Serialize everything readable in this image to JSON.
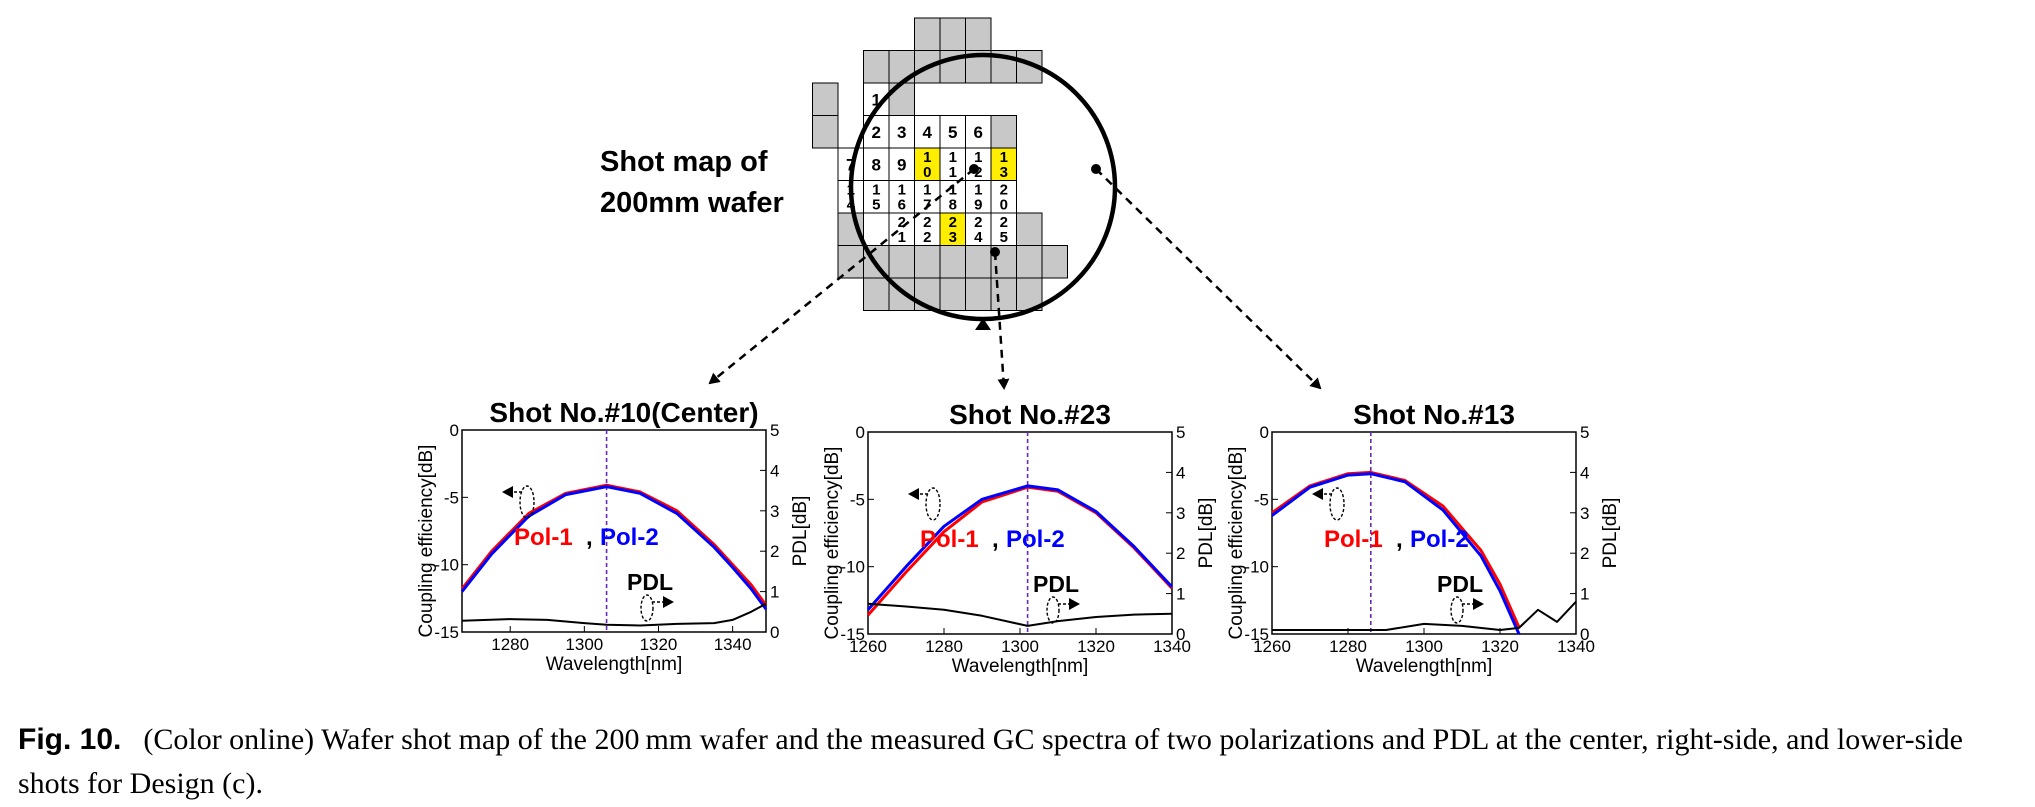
{
  "shot_map": {
    "title_line1": "Shot map of",
    "title_line2": "200mm wafer",
    "rows": [
      {
        "gray_before": 1,
        "cells": [
          "1"
        ],
        "gray_after": 1
      },
      {
        "gray_before": 1,
        "cells": [
          "2",
          "3",
          "4",
          "5",
          "6"
        ],
        "gray_after": 1
      },
      {
        "gray_before": 0,
        "cells": [
          "7",
          "8",
          "9",
          "10",
          "11",
          "12",
          "13"
        ],
        "gray_after": 0
      },
      {
        "gray_before": 0,
        "cells": [
          "14",
          "15",
          "16",
          "17",
          "18",
          "19",
          "20"
        ],
        "gray_after": 0
      },
      {
        "gray_before": 1,
        "cells": [
          "21",
          "22",
          "23",
          "24",
          "25"
        ],
        "gray_after": 1
      }
    ],
    "highlighted": [
      "10",
      "13",
      "23"
    ],
    "highlight_color": "#ffee00",
    "cell_gray": "#c8c8c8"
  },
  "chart_data": [
    {
      "type": "line",
      "title": "Shot No.#10(Center)",
      "xlabel": "Wavelength[nm]",
      "ylabel_left": "Coupling efficiency[dB]",
      "ylabel_right": "PDL[dB]",
      "xlim": [
        1267,
        1349
      ],
      "xticks": [
        1280,
        1300,
        1320,
        1340
      ],
      "ylim_left": [
        -15,
        0
      ],
      "yticks_left": [
        0,
        -5,
        -10,
        -15
      ],
      "ylim_right": [
        0,
        5
      ],
      "yticks_right": [
        5,
        4,
        3,
        2,
        1,
        0
      ],
      "center_wavelength": 1306,
      "series": [
        {
          "name": "Pol-1",
          "color": "#ff0000",
          "axis": "left",
          "x": [
            1267,
            1275,
            1285,
            1295,
            1306,
            1315,
            1325,
            1335,
            1340,
            1345,
            1349
          ],
          "y": [
            -11.8,
            -9.0,
            -6.2,
            -4.7,
            -4.1,
            -4.6,
            -6.0,
            -8.5,
            -10.0,
            -11.5,
            -13.0
          ]
        },
        {
          "name": "Pol-2",
          "color": "#0000ff",
          "axis": "left",
          "x": [
            1267,
            1275,
            1285,
            1295,
            1306,
            1315,
            1325,
            1335,
            1340,
            1345,
            1349
          ],
          "y": [
            -12.0,
            -9.2,
            -6.4,
            -4.8,
            -4.2,
            -4.7,
            -6.2,
            -8.7,
            -10.2,
            -11.8,
            -13.3
          ]
        },
        {
          "name": "PDL",
          "color": "#000000",
          "axis": "right",
          "x": [
            1267,
            1280,
            1290,
            1300,
            1306,
            1315,
            1325,
            1335,
            1340,
            1345,
            1349
          ],
          "y": [
            0.28,
            0.32,
            0.3,
            0.22,
            0.18,
            0.16,
            0.2,
            0.22,
            0.3,
            0.5,
            0.7
          ]
        }
      ],
      "annotations": {
        "pol1": "Pol-1",
        "comma": ",",
        "pol2": "Pol-2",
        "pdl": "PDL"
      }
    },
    {
      "type": "line",
      "title": "Shot No.#23",
      "xlabel": "Wavelength[nm]",
      "ylabel_left": "Coupling efficiency[dB]",
      "ylabel_right": "PDL[dB]",
      "xlim": [
        1260,
        1340
      ],
      "xticks": [
        1260,
        1280,
        1300,
        1320,
        1340
      ],
      "ylim_left": [
        -15,
        0
      ],
      "yticks_left": [
        0,
        -5,
        -10,
        -15
      ],
      "ylim_right": [
        0,
        5
      ],
      "yticks_right": [
        5,
        4,
        3,
        2,
        1,
        0
      ],
      "center_wavelength": 1302,
      "series": [
        {
          "name": "Pol-1",
          "color": "#ff0000",
          "axis": "left",
          "x": [
            1260,
            1270,
            1280,
            1290,
            1302,
            1310,
            1320,
            1330,
            1340
          ],
          "y": [
            -13.6,
            -10.4,
            -7.4,
            -5.2,
            -4.1,
            -4.4,
            -6.0,
            -8.6,
            -11.6
          ]
        },
        {
          "name": "Pol-2",
          "color": "#0000ff",
          "axis": "left",
          "x": [
            1260,
            1270,
            1280,
            1290,
            1302,
            1310,
            1320,
            1330,
            1340
          ],
          "y": [
            -13.2,
            -10.0,
            -7.0,
            -5.0,
            -4.0,
            -4.3,
            -5.9,
            -8.5,
            -11.5
          ]
        },
        {
          "name": "PDL",
          "color": "#000000",
          "axis": "right",
          "x": [
            1260,
            1270,
            1280,
            1290,
            1302,
            1310,
            1320,
            1330,
            1340
          ],
          "y": [
            0.75,
            0.68,
            0.6,
            0.45,
            0.2,
            0.32,
            0.42,
            0.48,
            0.5
          ]
        }
      ],
      "annotations": {
        "pol1": "Pol-1",
        "comma": ",",
        "pol2": "Pol-2",
        "pdl": "PDL"
      }
    },
    {
      "type": "line",
      "title": "Shot No.#13",
      "xlabel": "Wavelength[nm]",
      "ylabel_left": "Coupling efficiency[dB]",
      "ylabel_right": "PDL[dB]",
      "xlim": [
        1260,
        1340
      ],
      "xticks": [
        1260,
        1280,
        1300,
        1320,
        1340
      ],
      "ylim_left": [
        -15,
        0
      ],
      "yticks_left": [
        0,
        -5,
        -10,
        -15
      ],
      "ylim_right": [
        0,
        5
      ],
      "yticks_right": [
        5,
        4,
        3,
        2,
        1,
        0
      ],
      "center_wavelength": 1286,
      "series": [
        {
          "name": "Pol-1",
          "color": "#ff0000",
          "axis": "left",
          "x": [
            1260,
            1270,
            1280,
            1286,
            1295,
            1305,
            1315,
            1320,
            1325
          ],
          "y": [
            -6.0,
            -4.0,
            -3.1,
            -3.0,
            -3.6,
            -5.5,
            -8.8,
            -11.3,
            -14.5
          ]
        },
        {
          "name": "Pol-2",
          "color": "#0000ff",
          "axis": "left",
          "x": [
            1260,
            1270,
            1280,
            1286,
            1295,
            1305,
            1315,
            1320,
            1325
          ],
          "y": [
            -6.2,
            -4.1,
            -3.2,
            -3.1,
            -3.7,
            -5.8,
            -9.2,
            -11.8,
            -15.0
          ]
        },
        {
          "name": "PDL",
          "color": "#000000",
          "axis": "right",
          "x": [
            1260,
            1270,
            1280,
            1290,
            1300,
            1310,
            1320,
            1325,
            1330,
            1335,
            1340
          ],
          "y": [
            0.1,
            0.1,
            0.1,
            0.1,
            0.25,
            0.2,
            0.1,
            0.15,
            0.6,
            0.3,
            0.8
          ]
        }
      ],
      "annotations": {
        "pol1": "Pol-1",
        "comma": ",",
        "pol2": "Pol-2",
        "pdl": "PDL"
      }
    }
  ],
  "caption": {
    "label": "Fig. 10.",
    "text": "(Color online) Wafer shot map of the 200 mm wafer and the measured GC spectra of two polarizations and PDL at the center, right-side, and lower-side shots for Design (c)."
  }
}
